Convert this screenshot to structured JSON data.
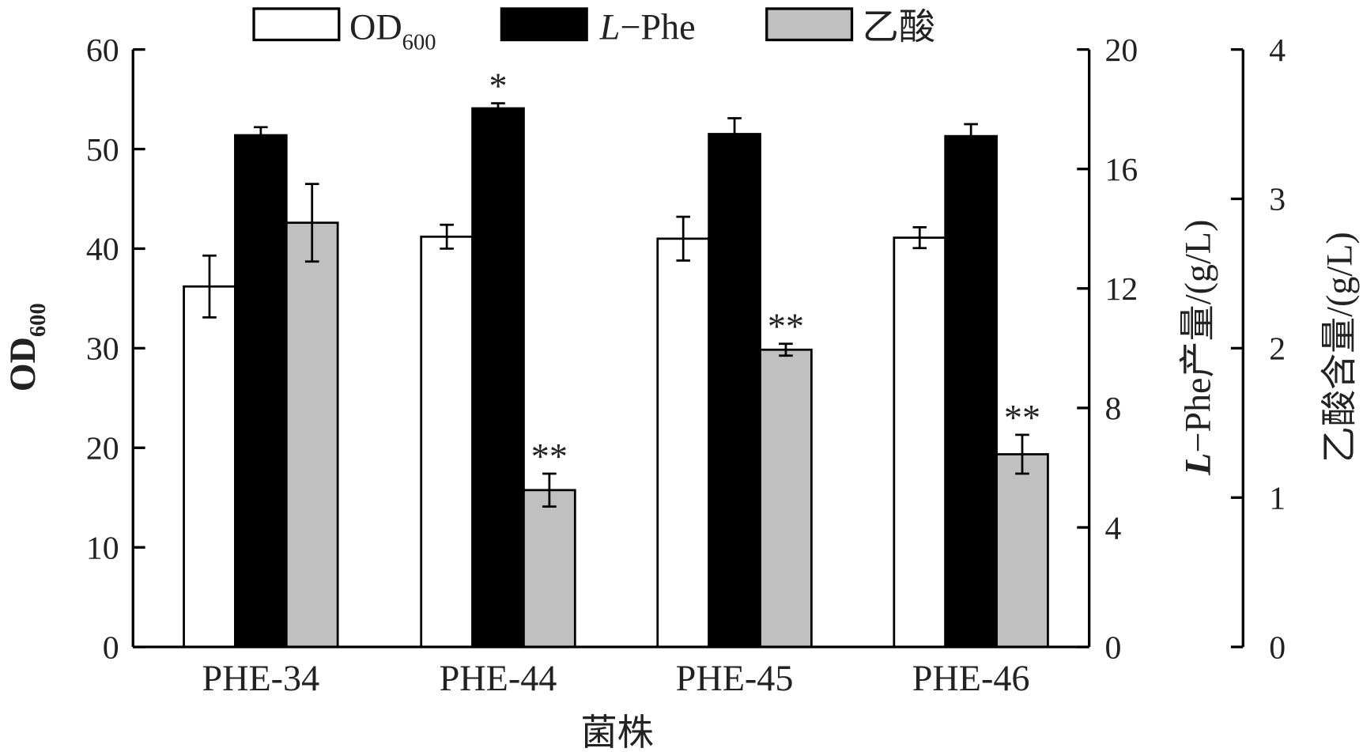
{
  "chart_data": {
    "type": "bar",
    "xlabel": "菌株",
    "categories": [
      "PHE-34",
      "PHE-44",
      "PHE-45",
      "PHE-46"
    ],
    "axes": {
      "left": {
        "label_main": "OD",
        "label_sub": "600",
        "ylim": [
          0,
          60
        ],
        "ticks": [
          0,
          10,
          20,
          30,
          40,
          50,
          60
        ]
      },
      "right1": {
        "label_italic": "L",
        "label_rest": "−Phe产量/(g/L)",
        "ylim": [
          0,
          20
        ],
        "ticks": [
          0,
          4,
          8,
          12,
          16,
          20
        ]
      },
      "right2": {
        "label": "乙酸含量/(g/L)",
        "ylim": [
          0,
          4
        ],
        "ticks": [
          0,
          1,
          2,
          3,
          4
        ]
      }
    },
    "legend": {
      "placement": "top",
      "items": [
        {
          "main": "OD",
          "sub": "600",
          "italic": "",
          "color": "#ffffff"
        },
        {
          "main": "−Phe",
          "sub": "",
          "italic": "L",
          "color": "#000000"
        },
        {
          "main": "乙酸",
          "sub": "",
          "italic": "",
          "color": "#c0c0c0"
        }
      ]
    },
    "series": [
      {
        "name": "OD600",
        "axis": "left",
        "color": "#ffffff",
        "values": [
          36.2,
          41.2,
          41.0,
          41.1
        ],
        "errors": [
          3.1,
          1.2,
          2.2,
          1.05
        ],
        "marks": [
          "",
          "",
          "",
          ""
        ]
      },
      {
        "name": "L-Phe",
        "axis": "right1",
        "color": "#000000",
        "values": [
          17.13,
          18.03,
          17.17,
          17.1
        ],
        "errors": [
          0.27,
          0.17,
          0.53,
          0.4
        ],
        "marks": [
          "",
          "*",
          "",
          ""
        ]
      },
      {
        "name": "乙酸",
        "axis": "right2",
        "color": "#c0c0c0",
        "values": [
          2.84,
          1.05,
          1.99,
          1.29
        ],
        "errors": [
          0.26,
          0.11,
          0.04,
          0.13
        ],
        "marks": [
          "",
          "**",
          "**",
          "**"
        ]
      }
    ]
  }
}
